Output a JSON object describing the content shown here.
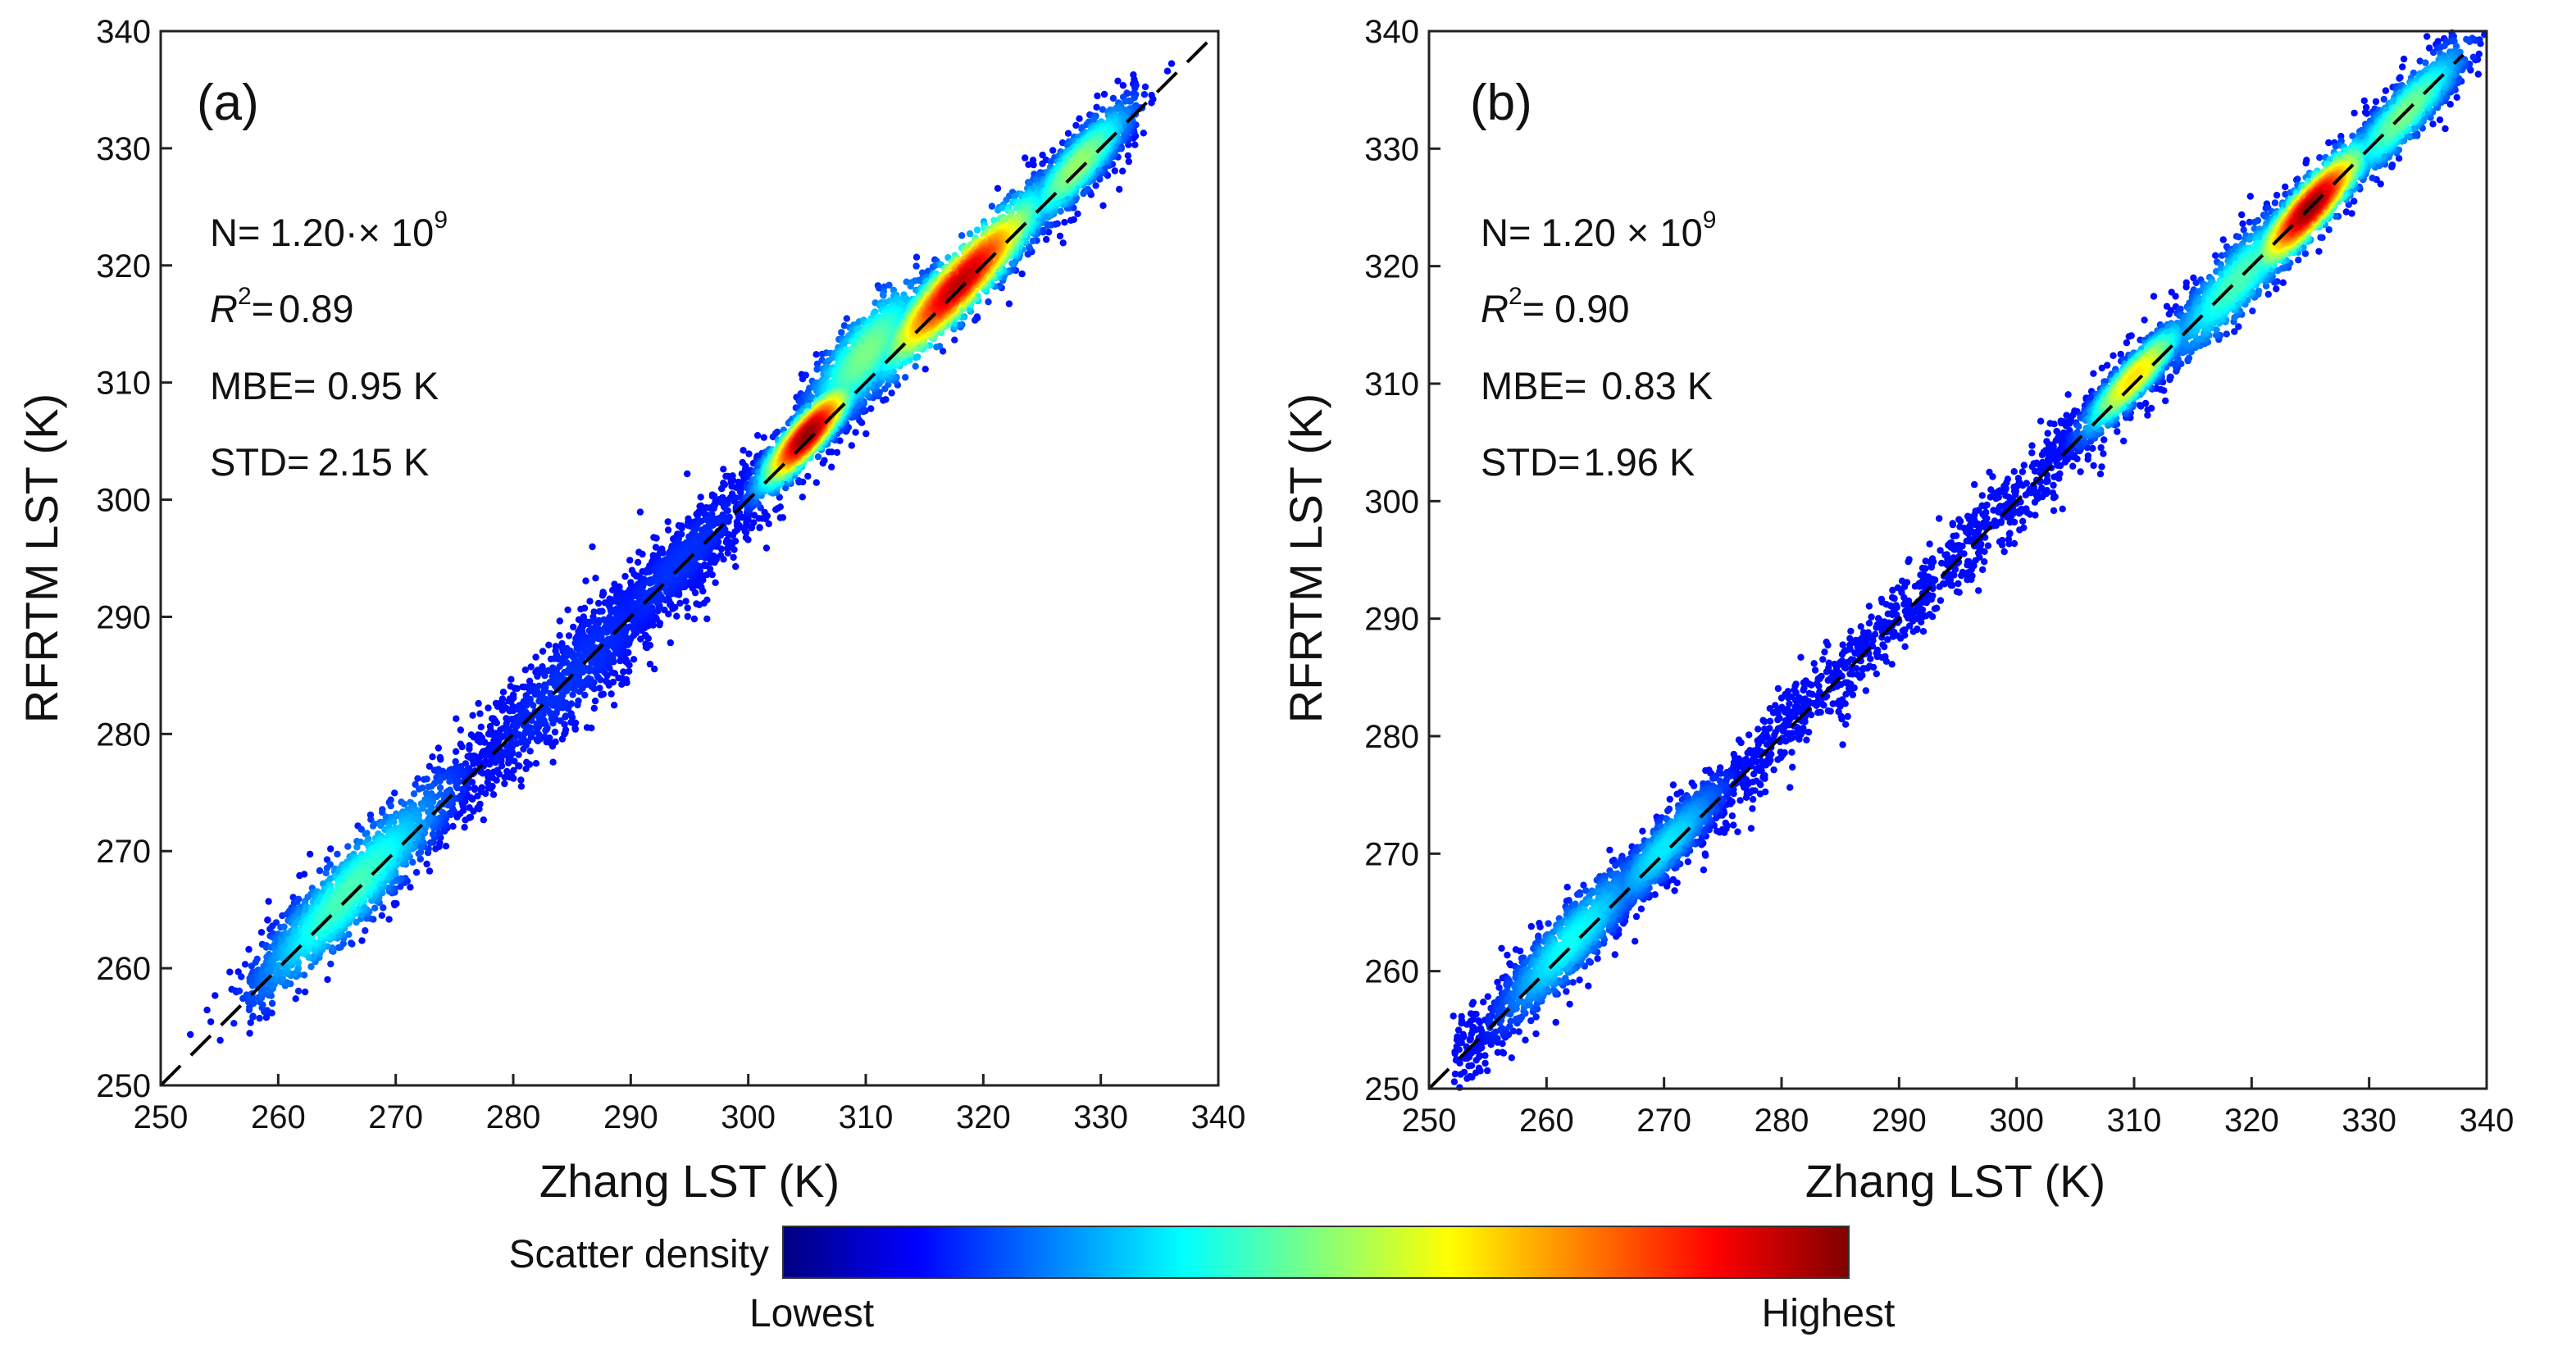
{
  "chart_data": [
    {
      "type": "scatter",
      "panel_label": "(a)",
      "xlabel": "Zhang LST (K)",
      "ylabel": "RFRTM LST (K)",
      "xlim": [
        250,
        340
      ],
      "ylim": [
        250,
        340
      ],
      "xticks": [
        250,
        260,
        270,
        280,
        290,
        300,
        310,
        320,
        330,
        340
      ],
      "yticks": [
        250,
        260,
        270,
        280,
        290,
        300,
        310,
        320,
        330,
        340
      ],
      "reference_line": {
        "style": "dashed",
        "from": [
          250,
          250
        ],
        "to": [
          340,
          340
        ]
      },
      "stats": {
        "n": {
          "label": "N=",
          "value": "1.20·× 10",
          "exp": "9"
        },
        "r2": {
          "label": "R",
          "sup": "2",
          "eq": "=",
          "value": "0.89"
        },
        "mbe": {
          "label": "MBE=",
          "value": "0.95 K"
        },
        "std": {
          "label": "STD=",
          "value": "2.15 K"
        }
      },
      "density_clusters": [
        {
          "x": 305,
          "y": 305.5,
          "sx": 1.8,
          "sy": 1.6,
          "density": 0.97
        },
        {
          "x": 318,
          "y": 318.5,
          "sx": 3.2,
          "sy": 2.2,
          "density": 0.93
        },
        {
          "x": 310,
          "y": 312.5,
          "sx": 2.5,
          "sy": 3.0,
          "density": 0.45
        },
        {
          "x": 328,
          "y": 328.5,
          "sx": 2.2,
          "sy": 2.0,
          "density": 0.48
        },
        {
          "x": 266,
          "y": 266.5,
          "sx": 4.0,
          "sy": 3.0,
          "density": 0.4
        },
        {
          "x": 285,
          "y": 285.0,
          "sx": 5.0,
          "sy": 4.5,
          "density": 0.1
        },
        {
          "x": 294,
          "y": 294.5,
          "sx": 4.0,
          "sy": 3.0,
          "density": 0.1
        }
      ],
      "x_range": [
        257.5,
        333
      ],
      "spread": 1.9,
      "bias": 0.95,
      "seed": 11
    },
    {
      "type": "scatter",
      "panel_label": "(b)",
      "xlabel": "Zhang LST (K)",
      "ylabel": "RFRTM LST (K)",
      "xlim": [
        250,
        340
      ],
      "ylim": [
        250,
        340
      ],
      "xticks": [
        250,
        260,
        270,
        280,
        290,
        300,
        310,
        320,
        330,
        340
      ],
      "yticks": [
        250,
        260,
        270,
        280,
        290,
        300,
        310,
        320,
        330,
        340
      ],
      "reference_line": {
        "style": "dashed",
        "from": [
          250,
          250
        ],
        "to": [
          338,
          338
        ]
      },
      "stats": {
        "n": {
          "label": "N=",
          "value": "1.20 × 10",
          "exp": "9"
        },
        "r2": {
          "label": "R",
          "sup": "2",
          "eq": "=",
          "value": "0.90"
        },
        "mbe": {
          "label": "MBE=",
          "value": "0.83 K"
        },
        "std": {
          "label": "STD=",
          "value": "1.96 K"
        }
      },
      "density_clusters": [
        {
          "x": 325,
          "y": 325.0,
          "sx": 2.2,
          "sy": 1.8,
          "density": 0.97
        },
        {
          "x": 310,
          "y": 310.5,
          "sx": 2.0,
          "sy": 1.5,
          "density": 0.62
        },
        {
          "x": 319,
          "y": 319.0,
          "sx": 3.0,
          "sy": 2.5,
          "density": 0.4
        },
        {
          "x": 333,
          "y": 333.0,
          "sx": 2.5,
          "sy": 2.0,
          "density": 0.45
        },
        {
          "x": 262,
          "y": 262.5,
          "sx": 3.0,
          "sy": 2.5,
          "density": 0.33
        },
        {
          "x": 270,
          "y": 270.5,
          "sx": 2.5,
          "sy": 2.0,
          "density": 0.3
        }
      ],
      "x_range": [
        252,
        337.5
      ],
      "spread": 1.7,
      "bias": 0.83,
      "seed": 23
    }
  ],
  "colorbar": {
    "title": "Scatter density",
    "low_label": "Lowest",
    "high_label": "Highest",
    "colormap": "jet",
    "colors": [
      "#00007f",
      "#0000ff",
      "#007fff",
      "#00ffff",
      "#7fff7f",
      "#ffff00",
      "#ff7f00",
      "#ff0000",
      "#7f0000"
    ]
  }
}
